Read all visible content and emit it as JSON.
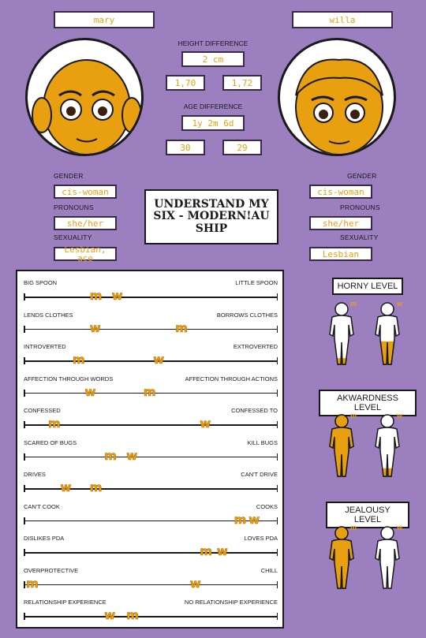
{
  "left": {
    "name": "mary",
    "gender": "cis-woman",
    "pronouns": "she/her",
    "sexuality": "Lesbian, ace"
  },
  "right": {
    "name": "willa",
    "gender": "cis-woman",
    "pronouns": "she/her",
    "sexuality": "Lesbian"
  },
  "center": {
    "height_title": "HEIGHT DIFFERENCE",
    "height_diff": "2 cm",
    "height_left": "1,70",
    "height_right": "1,72",
    "age_title": "AGE DIFFERENCE",
    "age_diff": "1y 2m 6d",
    "age_left": "30",
    "age_right": "29"
  },
  "labels": {
    "gender": "GENDER",
    "pronouns": "PRONOUNS",
    "sexuality": "SEXUALITY"
  },
  "title": "UNDERSTAND MY SIX - MODERN!AU SHIP",
  "scales": [
    {
      "left": "BIG SPOON",
      "right": "LITTLE SPOON",
      "marks": [
        {
          "t": "m",
          "v": 0.27
        },
        {
          "t": "w",
          "v": 0.36
        }
      ]
    },
    {
      "left": "LENDS CLOTHES",
      "right": "BORROWS CLOTHES",
      "marks": [
        {
          "t": "w",
          "v": 0.27
        },
        {
          "t": "m",
          "v": 0.62
        }
      ]
    },
    {
      "left": "INTROVERTED",
      "right": "EXTROVERTED",
      "marks": [
        {
          "t": "m",
          "v": 0.2
        },
        {
          "t": "w",
          "v": 0.53
        }
      ]
    },
    {
      "left": "AFFECTION THROUGH WORDS",
      "right": "AFFECTION THROUGH ACTIONS",
      "marks": [
        {
          "t": "w",
          "v": 0.25
        },
        {
          "t": "m",
          "v": 0.49
        }
      ]
    },
    {
      "left": "CONFESSED",
      "right": "CONFESSED TO",
      "marks": [
        {
          "t": "m",
          "v": 0.1
        },
        {
          "t": "w",
          "v": 0.72
        }
      ]
    },
    {
      "left": "SCARED OF BUGS",
      "right": "KILL BUGS",
      "marks": [
        {
          "t": "m",
          "v": 0.33
        },
        {
          "t": "w",
          "v": 0.42
        }
      ]
    },
    {
      "left": "DRIVES",
      "right": "CAN'T DRIVE",
      "marks": [
        {
          "t": "w",
          "v": 0.15
        },
        {
          "t": "m",
          "v": 0.27
        }
      ]
    },
    {
      "left": "CAN'T COOK",
      "right": "COOKS",
      "marks": [
        {
          "t": "m",
          "v": 0.86
        },
        {
          "t": "w",
          "v": 0.92
        }
      ]
    },
    {
      "left": "DISLIKES PDA",
      "right": "LOVES PDA",
      "marks": [
        {
          "t": "m",
          "v": 0.72
        },
        {
          "t": "w",
          "v": 0.79
        }
      ]
    },
    {
      "left": "OVERPROTECTIVE",
      "right": "CHILL",
      "marks": [
        {
          "t": "m",
          "v": 0.01
        },
        {
          "t": "w",
          "v": 0.68
        }
      ]
    },
    {
      "left": "RELATIONSHIP EXPERIENCE",
      "right": "NO RELATIONSHIP EXPERIENCE",
      "marks": [
        {
          "t": "w",
          "v": 0.33
        },
        {
          "t": "m",
          "v": 0.42
        }
      ]
    }
  ],
  "levels": [
    {
      "title": "HORNY LEVEL",
      "m_fill": 0.12,
      "w_fill": 0.38
    },
    {
      "title": "AKWARDNESS LEVEL",
      "m_fill": 1.0,
      "w_fill": 0.15
    },
    {
      "title": "JEALOUSY LEVEL",
      "m_fill": 1.0,
      "w_fill": 0.0
    }
  ],
  "colors": {
    "background": "#9b7fbf",
    "accent": "#e8a010"
  }
}
